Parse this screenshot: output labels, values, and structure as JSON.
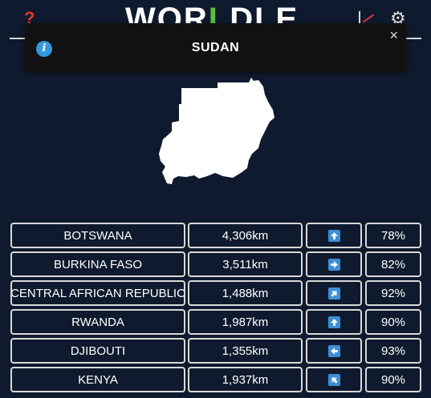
{
  "header": {
    "help_glyph": "?",
    "logo_pre": "WOR",
    "logo_mid": "L",
    "logo_post": "DLE"
  },
  "toast": {
    "message": "SUDAN",
    "info_glyph": "i",
    "close_glyph": "×"
  },
  "colors": {
    "background": "#0f1a2e",
    "arrow_blue": "#3b8fd6",
    "accent_green": "#5bbf3a",
    "accent_red": "#e2352c"
  },
  "guesses": [
    {
      "country": "BOTSWANA",
      "distance": "4,306km",
      "direction": "up-icon",
      "proximity": "78%"
    },
    {
      "country": "BURKINA FASO",
      "distance": "3,511km",
      "direction": "right-icon",
      "proximity": "82%"
    },
    {
      "country": "CENTRAL AFRICAN REPUBLIC",
      "distance": "1,488km",
      "direction": "up-right-icon",
      "proximity": "92%"
    },
    {
      "country": "RWANDA",
      "distance": "1,987km",
      "direction": "up-icon",
      "proximity": "90%"
    },
    {
      "country": "DJIBOUTI",
      "distance": "1,355km",
      "direction": "left-icon",
      "proximity": "93%"
    },
    {
      "country": "KENYA",
      "distance": "1,937km",
      "direction": "up-left-icon",
      "proximity": "90%"
    }
  ]
}
